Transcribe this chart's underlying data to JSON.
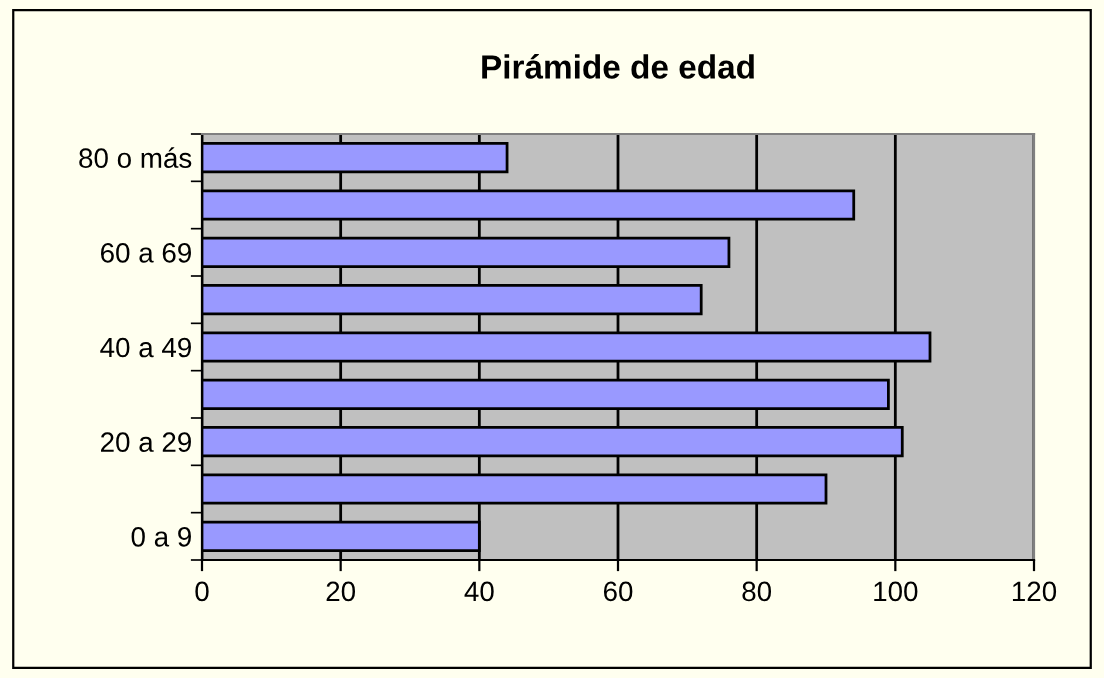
{
  "chart_data": {
    "type": "bar",
    "orientation": "horizontal",
    "title": "Pirámide de edad",
    "categories": [
      "80 o más",
      null,
      "60 a 69",
      null,
      "40 a 49",
      null,
      "20 a 29",
      null,
      "0 a 9"
    ],
    "values": [
      44,
      94,
      76,
      72,
      105,
      99,
      101,
      90,
      40
    ],
    "color": "#9999ff",
    "xlim": [
      0,
      120
    ],
    "xticks": [
      0,
      20,
      40,
      60,
      80,
      100,
      120
    ],
    "grid": "x",
    "legend": false
  }
}
